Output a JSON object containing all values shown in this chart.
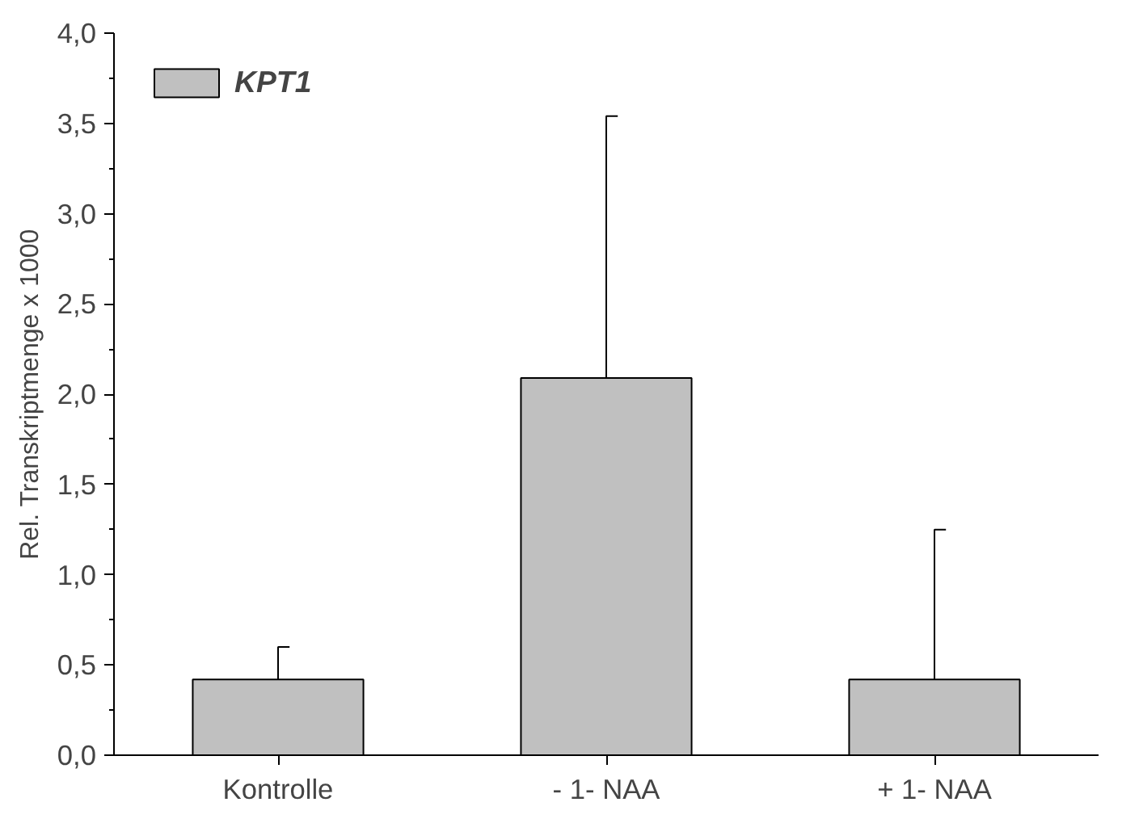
{
  "chart_data": {
    "type": "bar",
    "ylabel": "Rel. Transkriptmenge x 1000",
    "categories": [
      "Kontrolle",
      "- 1- NAA",
      "+ 1- NAA"
    ],
    "series": [
      {
        "name": "KPT1",
        "color": "#c0c0c0",
        "values": [
          0.42,
          2.09,
          0.42
        ],
        "errors": [
          [
            0.42,
            0.6
          ],
          [
            2.09,
            3.54
          ],
          [
            0.42,
            1.25
          ]
        ]
      }
    ],
    "ylim": [
      0,
      4
    ],
    "yticks": [
      {
        "value": 0,
        "label": "0,0"
      },
      {
        "value": 0.25,
        "label": null
      },
      {
        "value": 0.5,
        "label": "0,5"
      },
      {
        "value": 0.75,
        "label": null
      },
      {
        "value": 1,
        "label": "1,0"
      },
      {
        "value": 1.25,
        "label": null
      },
      {
        "value": 1.5,
        "label": "1,5"
      },
      {
        "value": 1.75,
        "label": null
      },
      {
        "value": 2,
        "label": "2,0"
      },
      {
        "value": 2.25,
        "label": null
      },
      {
        "value": 2.5,
        "label": "2,5"
      },
      {
        "value": 2.75,
        "label": null
      },
      {
        "value": 3,
        "label": "3,0"
      },
      {
        "value": 3.25,
        "label": null
      },
      {
        "value": 3.5,
        "label": "3,5"
      },
      {
        "value": 3.75,
        "label": null
      },
      {
        "value": 4,
        "label": "4,0"
      }
    ],
    "legend": "top left",
    "grid": false
  }
}
